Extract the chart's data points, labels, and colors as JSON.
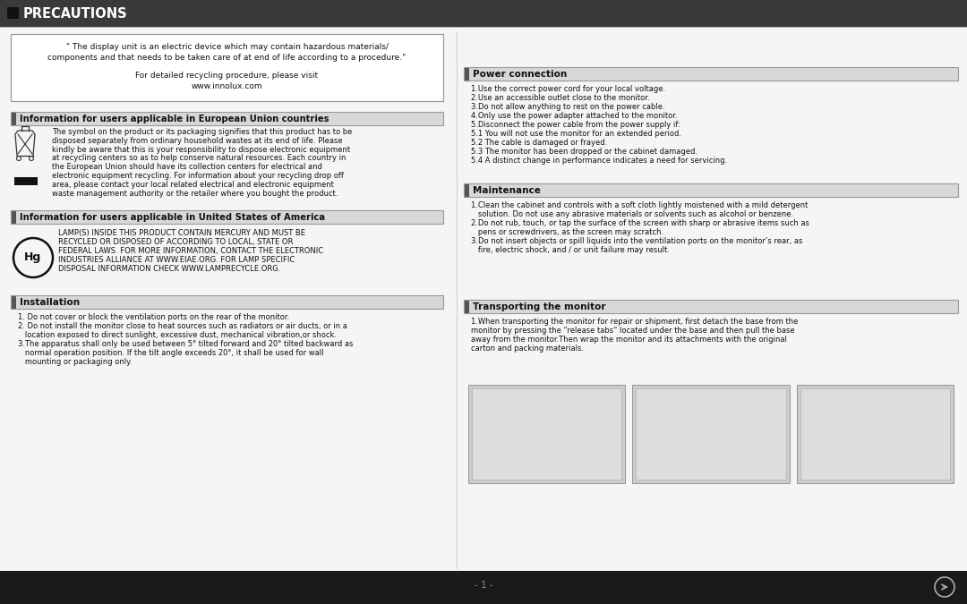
{
  "title": "PRECAUTIONS",
  "bg_color": "#f5f5f5",
  "header_bg": "#3a3a3a",
  "footer_bg": "#1a1a1a",
  "section_strip_color": "#555555",
  "section_bg_color": "#dedede",
  "border_color": "#999999",
  "text_color": "#111111",
  "quote_text1": "\" The display unit is an electric device which may contain hazardous materials/",
  "quote_text2": "components and that needs to be taken care of at end of life according to a procedure.\"",
  "quote_text3": "For detailed recycling procedure, please visit",
  "quote_text4": "www.innolux.com",
  "eu_title": "Information for users applicable in European Union countries",
  "eu_body": [
    "The symbol on the product or its packaging signifies that this product has to be",
    "disposed separately from ordinary household wastes at its end of life. Please",
    "kindly be aware that this is your responsibility to dispose electronic equipment",
    "at recycling centers so as to help conserve natural resources. Each country in",
    "the European Union should have its collection centers for electrical and",
    "electronic equipment recycling. For information about your recycling drop off",
    "area, please contact your local related electrical and electronic equipment",
    "waste management authority or the retailer where you bought the product."
  ],
  "usa_title": "Information for users applicable in United States of America",
  "usa_body": [
    "LAMP(S) INSIDE THIS PRODUCT CONTAIN MERCURY AND MUST BE",
    "RECYCLED OR DISPOSED OF ACCORDING TO LOCAL, STATE OR",
    "FEDERAL LAWS. FOR MORE INFORMATION, CONTACT THE ELECTRONIC",
    "INDUSTRIES ALLIANCE AT WWW.EIAE.ORG. FOR LAMP SPECIFIC",
    "DISPOSAL INFORMATION CHECK WWW.LAMPRECYCLE.ORG."
  ],
  "inst_title": "Installation",
  "inst_body": [
    "1. Do not cover or block the ventilation ports on the rear of the monitor.",
    "2. Do not install the monitor close to heat sources such as radiators or air ducts, or in a",
    "   location exposed to direct sunlight, excessive dust, mechanical vibration,or shock.",
    "3.The apparatus shall only be used between 5° tilted forward and 20° tilted backward as",
    "   normal operation position. If the tilt angle exceeds 20°, it shall be used for wall",
    "   mounting or packaging only."
  ],
  "power_title": "Power connection",
  "power_body": [
    "1.Use the correct power cord for your local voltage.",
    "2.Use an accessible outlet close to the monitor.",
    "3.Do not allow anything to rest on the power cable.",
    "4.Only use the power adapter attached to the monitor.",
    "5.Disconnect the power cable from the power supply if:",
    "5.1 You will not use the monitor for an extended period.",
    "5.2 The cable is damaged or frayed.",
    "5.3 The monitor has been dropped or the cabinet damaged.",
    "5.4 A distinct change in performance indicates a need for servicing."
  ],
  "maint_title": "Maintenance",
  "maint_body": [
    "1.Clean the cabinet and controls with a soft cloth lightly moistened with a mild detergent",
    "   solution. Do not use any abrasive materials or solvents such as alcohol or benzene.",
    "2.Do not rub, touch, or tap the surface of the screen with sharp or abrasive items such as",
    "   pens or screwdrivers, as the screen may scratch.",
    "3.Do not insert objects or spill liquids into the ventilation ports on the monitor’s rear, as",
    "   fire, electric shock, and / or unit failure may result."
  ],
  "trans_title": "Transporting the monitor",
  "trans_body": [
    "1.When transporting the monitor for repair or shipment, first detach the base from the",
    "monitor by pressing the “release tabs” located under the base and then pull the base",
    "away from the monitor.Then wrap the monitor and its attachments with the original",
    "carton and packing materials."
  ],
  "page_number": "- 1 -"
}
